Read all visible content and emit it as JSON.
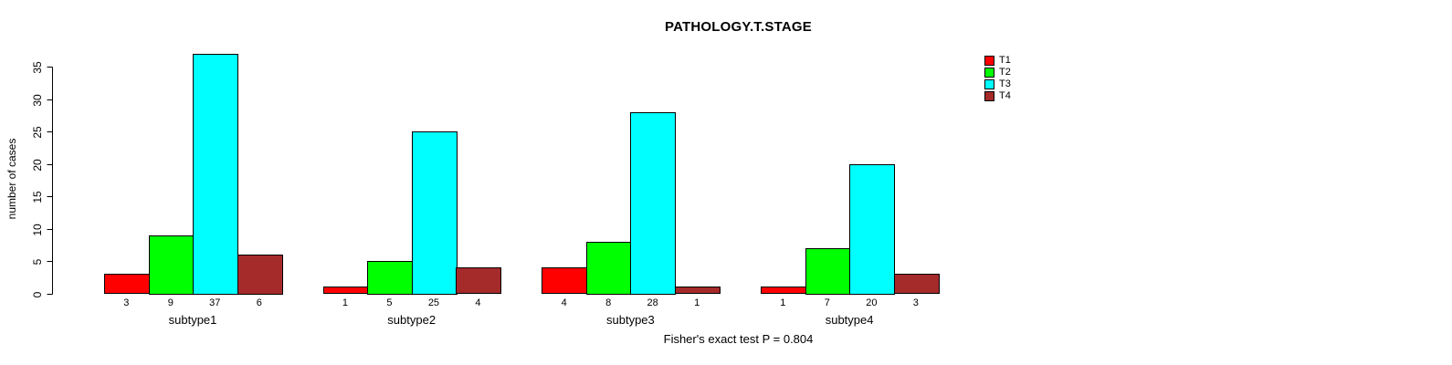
{
  "title": "PATHOLOGY.T.STAGE",
  "annotation": "Fisher's exact test P = 0.804",
  "ylabel": "number of cases",
  "legend": [
    {
      "label": "T1",
      "color": "#FF0000"
    },
    {
      "label": "T2",
      "color": "#00FF00"
    },
    {
      "label": "T3",
      "color": "#00FFFF"
    },
    {
      "label": "T4",
      "color": "#A52A2A"
    }
  ],
  "chart_data": {
    "type": "bar",
    "title": "PATHOLOGY.T.STAGE",
    "xlabel": "",
    "ylabel": "number of cases",
    "categories": [
      "subtype1",
      "subtype2",
      "subtype3",
      "subtype4"
    ],
    "series": [
      {
        "name": "T1",
        "color": "#FF0000",
        "values": [
          3,
          1,
          4,
          1
        ]
      },
      {
        "name": "T2",
        "color": "#00FF00",
        "values": [
          9,
          5,
          8,
          7
        ]
      },
      {
        "name": "T3",
        "color": "#00FFFF",
        "values": [
          37,
          25,
          28,
          20
        ]
      },
      {
        "name": "T4",
        "color": "#A52A2A",
        "values": [
          6,
          4,
          1,
          3
        ]
      }
    ],
    "bar_value_labels_shown": true,
    "ylim": [
      0,
      35
    ],
    "yticks": [
      0,
      5,
      10,
      15,
      20,
      25,
      30,
      35
    ],
    "grid": false,
    "legend_position": "right",
    "annotation": "Fisher's exact test P = 0.804"
  }
}
